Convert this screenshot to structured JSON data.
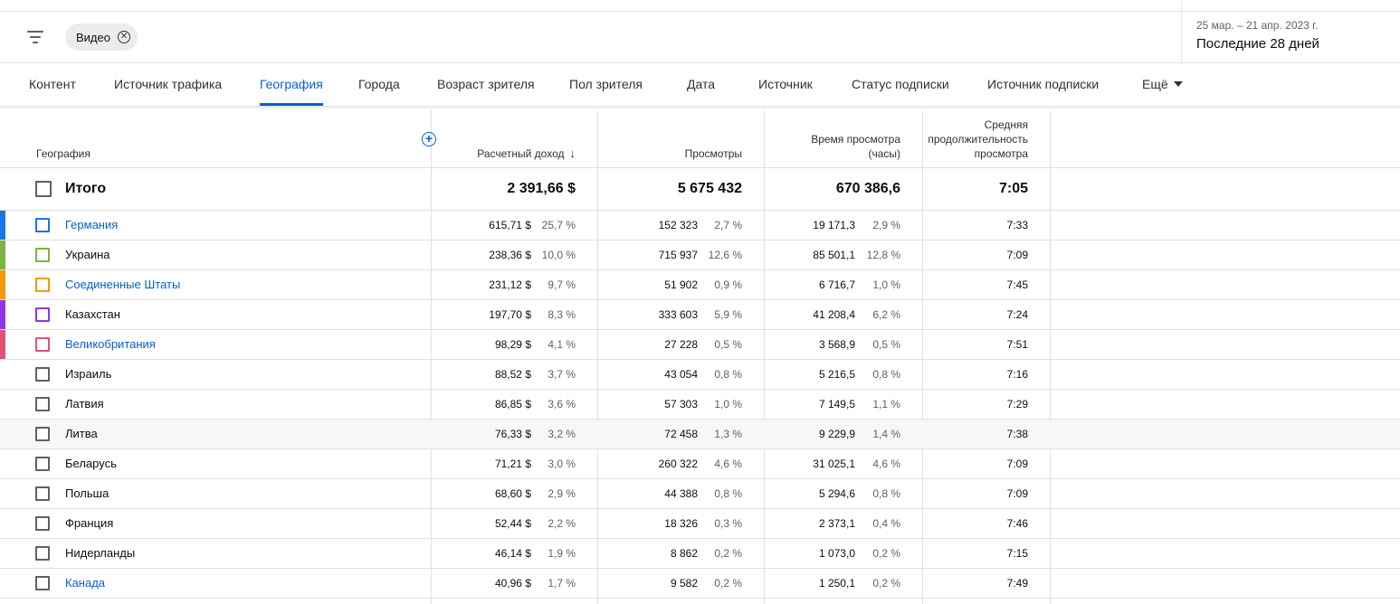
{
  "filters": {
    "chip_label": "Видео"
  },
  "date": {
    "range": "25 мар. – 21 апр. 2023 г.",
    "label": "Последние 28 дней"
  },
  "tabs": [
    {
      "label": "Контент"
    },
    {
      "label": "Источник трафика"
    },
    {
      "label": "География",
      "active": true
    },
    {
      "label": "Города"
    },
    {
      "label": "Возраст зрителя"
    },
    {
      "label": "Пол зрителя"
    },
    {
      "label": "Дата"
    },
    {
      "label": "Источник"
    },
    {
      "label": "Статус подписки"
    },
    {
      "label": "Источник подписки"
    },
    {
      "label": "Ещё"
    }
  ],
  "columns": {
    "geography": "География",
    "revenue": "Расчетный доход",
    "views": "Просмотры",
    "watch_time": [
      "Время просмотра",
      "(часы)"
    ],
    "avg_duration": [
      "Средняя",
      "продолжительность",
      "просмотра"
    ]
  },
  "totals": {
    "label": "Итого",
    "revenue": "2 391,66 $",
    "views": "5 675 432",
    "watch_time": "670 386,6",
    "avg_duration": "7:05"
  },
  "rows": [
    {
      "name": "Германия",
      "link": true,
      "color": "#1a73e8",
      "revenue": "615,71 $",
      "revenue_pct": "25,7 %",
      "views": "152 323",
      "views_pct": "2,7 %",
      "watch": "19 171,3",
      "watch_pct": "2,9 %",
      "avg": "7:33"
    },
    {
      "name": "Украина",
      "link": false,
      "color": "#7cb342",
      "revenue": "238,36 $",
      "revenue_pct": "10,0 %",
      "views": "715 937",
      "views_pct": "12,6 %",
      "watch": "85 501,1",
      "watch_pct": "12,8 %",
      "avg": "7:09"
    },
    {
      "name": "Соединенные Штаты",
      "link": true,
      "color": "#f29900",
      "revenue": "231,12 $",
      "revenue_pct": "9,7 %",
      "views": "51 902",
      "views_pct": "0,9 %",
      "watch": "6 716,7",
      "watch_pct": "1,0 %",
      "avg": "7:45"
    },
    {
      "name": "Казахстан",
      "link": false,
      "color": "#9334e6",
      "revenue": "197,70 $",
      "revenue_pct": "8,3 %",
      "views": "333 603",
      "views_pct": "5,9 %",
      "watch": "41 208,4",
      "watch_pct": "6,2 %",
      "avg": "7:24"
    },
    {
      "name": "Великобритания",
      "link": true,
      "color": "#e05274",
      "revenue": "98,29 $",
      "revenue_pct": "4,1 %",
      "views": "27 228",
      "views_pct": "0,5 %",
      "watch": "3 568,9",
      "watch_pct": "0,5 %",
      "avg": "7:51"
    },
    {
      "name": "Израиль",
      "link": false,
      "color": "",
      "revenue": "88,52 $",
      "revenue_pct": "3,7 %",
      "views": "43 054",
      "views_pct": "0,8 %",
      "watch": "5 216,5",
      "watch_pct": "0,8 %",
      "avg": "7:16"
    },
    {
      "name": "Латвия",
      "link": false,
      "color": "",
      "revenue": "86,85 $",
      "revenue_pct": "3,6 %",
      "views": "57 303",
      "views_pct": "1,0 %",
      "watch": "7 149,5",
      "watch_pct": "1,1 %",
      "avg": "7:29"
    },
    {
      "name": "Литва",
      "link": false,
      "color": "",
      "highlight": true,
      "revenue": "76,33 $",
      "revenue_pct": "3,2 %",
      "views": "72 458",
      "views_pct": "1,3 %",
      "watch": "9 229,9",
      "watch_pct": "1,4 %",
      "avg": "7:38"
    },
    {
      "name": "Беларусь",
      "link": false,
      "color": "",
      "revenue": "71,21 $",
      "revenue_pct": "3,0 %",
      "views": "260 322",
      "views_pct": "4,6 %",
      "watch": "31 025,1",
      "watch_pct": "4,6 %",
      "avg": "7:09"
    },
    {
      "name": "Польша",
      "link": false,
      "color": "",
      "revenue": "68,60 $",
      "revenue_pct": "2,9 %",
      "views": "44 388",
      "views_pct": "0,8 %",
      "watch": "5 294,6",
      "watch_pct": "0,8 %",
      "avg": "7:09"
    },
    {
      "name": "Франция",
      "link": false,
      "color": "",
      "revenue": "52,44 $",
      "revenue_pct": "2,2 %",
      "views": "18 326",
      "views_pct": "0,3 %",
      "watch": "2 373,1",
      "watch_pct": "0,4 %",
      "avg": "7:46"
    },
    {
      "name": "Нидерланды",
      "link": false,
      "color": "",
      "revenue": "46,14 $",
      "revenue_pct": "1,9 %",
      "views": "8 862",
      "views_pct": "0,2 %",
      "watch": "1 073,0",
      "watch_pct": "0,2 %",
      "avg": "7:15"
    },
    {
      "name": "Канада",
      "link": true,
      "color": "",
      "revenue": "40,96 $",
      "revenue_pct": "1,7 %",
      "views": "9 582",
      "views_pct": "0,2 %",
      "watch": "1 250,1",
      "watch_pct": "0,2 %",
      "avg": "7:49"
    }
  ]
}
